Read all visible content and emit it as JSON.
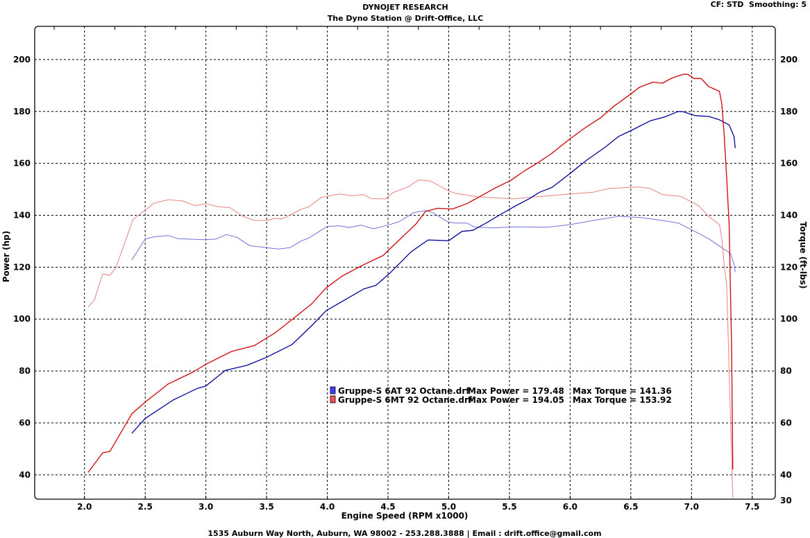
{
  "header": {
    "title": "DYNOJET RESEARCH",
    "subtitle": "The Dyno Station @ Drift-Office, LLC",
    "settings": "CF: STD  Smoothing: 5"
  },
  "footer": "1535 Auburn Way North, Auburn, WA 98002 - 253.288.3888 | Email : drift.office@gmail.com",
  "chart_data": {
    "type": "line",
    "title": "DYNOJET RESEARCH",
    "xlabel": "Engine Speed (RPM x1000)",
    "ylabel": "Power (hp)",
    "y2label": "Torque (ft-lbs)",
    "xlim": [
      1.59,
      7.69
    ],
    "ylim": [
      30.6,
      212.8
    ],
    "grid": true,
    "legend_position": "center",
    "xticks": [
      "2.0",
      "2.5",
      "3.0",
      "3.5",
      "4.0",
      "4.5",
      "5.0",
      "5.5",
      "6.0",
      "6.5",
      "7.0",
      "7.5"
    ],
    "xtick_values": [
      2.0,
      2.5,
      3.0,
      3.5,
      4.0,
      4.5,
      5.0,
      5.5,
      6.0,
      6.5,
      7.0,
      7.5
    ],
    "yticks": [
      "40",
      "60",
      "80",
      "100",
      "120",
      "140",
      "160",
      "180",
      "200"
    ],
    "ytick_values": [
      40,
      60,
      80,
      100,
      120,
      140,
      160,
      180,
      200
    ],
    "y2ticks": [
      "30",
      "40",
      "60",
      "80",
      "100",
      "120",
      "140",
      "160",
      "180",
      "200"
    ],
    "y2tick_values": [
      30,
      40,
      60,
      80,
      100,
      120,
      140,
      160,
      180,
      200
    ],
    "legend": [
      {
        "name": "Gruppe-S 6AT 92 Octane.drf",
        "power_label": "Max Power = 179.48",
        "torque_label": "Max Torque = 141.36",
        "color": "#0000c8"
      },
      {
        "name": "Gruppe-S 6MT 92 Octane.drf",
        "power_label": "Max Power = 194.05",
        "torque_label": "Max Torque = 153.92",
        "color": "#e00000"
      }
    ],
    "series": [
      {
        "name": "Gruppe-S 6AT 92 Octane.drf Power",
        "color": "#00009a",
        "width": 1.3,
        "points": [
          [
            2.39,
            56
          ],
          [
            2.5,
            61.7
          ],
          [
            2.73,
            68.8
          ],
          [
            2.93,
            73.3
          ],
          [
            3.0,
            74.2
          ],
          [
            3.16,
            80.2
          ],
          [
            3.34,
            82.2
          ],
          [
            3.5,
            85.3
          ],
          [
            3.71,
            90.2
          ],
          [
            3.87,
            97.4
          ],
          [
            3.99,
            103.2
          ],
          [
            4.12,
            106.7
          ],
          [
            4.3,
            111.6
          ],
          [
            4.4,
            113
          ],
          [
            4.52,
            117.9
          ],
          [
            4.69,
            125.9
          ],
          [
            4.83,
            130.5
          ],
          [
            5.0,
            130.2
          ],
          [
            5.11,
            133.8
          ],
          [
            5.2,
            134.2
          ],
          [
            5.32,
            137.3
          ],
          [
            5.43,
            140.4
          ],
          [
            5.55,
            143.6
          ],
          [
            5.66,
            146.3
          ],
          [
            5.75,
            148.9
          ],
          [
            5.85,
            150.7
          ],
          [
            6.0,
            156.1
          ],
          [
            6.13,
            161
          ],
          [
            6.29,
            166.3
          ],
          [
            6.4,
            170.4
          ],
          [
            6.5,
            172.6
          ],
          [
            6.66,
            176.4
          ],
          [
            6.78,
            177.9
          ],
          [
            6.89,
            180
          ],
          [
            6.93,
            179.9
          ],
          [
            7.03,
            178.4
          ],
          [
            7.14,
            178.1
          ],
          [
            7.23,
            176.8
          ],
          [
            7.31,
            174.8
          ],
          [
            7.35,
            170.4
          ],
          [
            7.36,
            165.9
          ]
        ]
      },
      {
        "name": "Gruppe-S 6MT 92 Octane.drf Power",
        "color": "#d00000",
        "width": 1.3,
        "points": [
          [
            2.03,
            40.9
          ],
          [
            2.15,
            48.5
          ],
          [
            2.21,
            49
          ],
          [
            2.39,
            63.5
          ],
          [
            2.5,
            68
          ],
          [
            2.69,
            75
          ],
          [
            2.89,
            79.5
          ],
          [
            3.0,
            82.6
          ],
          [
            3.21,
            87.5
          ],
          [
            3.4,
            89.8
          ],
          [
            3.57,
            94.7
          ],
          [
            3.72,
            100.2
          ],
          [
            3.87,
            105.8
          ],
          [
            3.99,
            112
          ],
          [
            4.12,
            116.5
          ],
          [
            4.28,
            120.5
          ],
          [
            4.46,
            124.5
          ],
          [
            4.59,
            130.4
          ],
          [
            4.73,
            136.6
          ],
          [
            4.81,
            141.5
          ],
          [
            4.91,
            142.7
          ],
          [
            5.03,
            142.4
          ],
          [
            5.15,
            144.5
          ],
          [
            5.26,
            147.3
          ],
          [
            5.39,
            150.7
          ],
          [
            5.51,
            153.4
          ],
          [
            5.62,
            157
          ],
          [
            5.74,
            160.4
          ],
          [
            5.85,
            163.9
          ],
          [
            6.0,
            169.5
          ],
          [
            6.13,
            173.9
          ],
          [
            6.25,
            177.5
          ],
          [
            6.36,
            182
          ],
          [
            6.49,
            186.4
          ],
          [
            6.57,
            189.3
          ],
          [
            6.68,
            191.3
          ],
          [
            6.76,
            190.9
          ],
          [
            6.84,
            192.9
          ],
          [
            6.93,
            194.3
          ],
          [
            6.97,
            194.3
          ],
          [
            7.02,
            192.7
          ],
          [
            7.08,
            192.7
          ],
          [
            7.14,
            189.6
          ],
          [
            7.23,
            187.8
          ],
          [
            7.25,
            182.9
          ],
          [
            7.27,
            170.4
          ],
          [
            7.29,
            154.3
          ],
          [
            7.31,
            136.4
          ],
          [
            7.33,
            90
          ],
          [
            7.34,
            42
          ]
        ]
      },
      {
        "name": "Gruppe-S 6AT 92 Octane.drf Torque",
        "color": "#7070e0",
        "width": 1,
        "points": [
          [
            2.39,
            122.8
          ],
          [
            2.5,
            130.8
          ],
          [
            2.57,
            131.7
          ],
          [
            2.69,
            132.2
          ],
          [
            2.77,
            131
          ],
          [
            2.99,
            130.6
          ],
          [
            3.08,
            130.8
          ],
          [
            3.17,
            132.6
          ],
          [
            3.26,
            131.4
          ],
          [
            3.36,
            128.3
          ],
          [
            3.5,
            127.5
          ],
          [
            3.6,
            127
          ],
          [
            3.69,
            127.5
          ],
          [
            3.79,
            130.2
          ],
          [
            3.85,
            131.3
          ],
          [
            4.0,
            135.7
          ],
          [
            4.1,
            135.9
          ],
          [
            4.18,
            135.3
          ],
          [
            4.28,
            136.2
          ],
          [
            4.38,
            134.8
          ],
          [
            4.5,
            136.2
          ],
          [
            4.59,
            137.5
          ],
          [
            4.71,
            141
          ],
          [
            4.81,
            141.8
          ],
          [
            4.87,
            141
          ],
          [
            4.99,
            137.5
          ],
          [
            5.05,
            137
          ],
          [
            5.15,
            137
          ],
          [
            5.21,
            135.5
          ],
          [
            5.36,
            135.1
          ],
          [
            5.53,
            135.5
          ],
          [
            5.81,
            135.4
          ],
          [
            6.0,
            136.4
          ],
          [
            6.19,
            138
          ],
          [
            6.4,
            139.6
          ],
          [
            6.59,
            139.1
          ],
          [
            6.76,
            138
          ],
          [
            6.89,
            137
          ],
          [
            7.01,
            134.2
          ],
          [
            7.14,
            131
          ],
          [
            7.25,
            127.5
          ],
          [
            7.32,
            125.3
          ],
          [
            7.35,
            121.3
          ],
          [
            7.36,
            118.1
          ]
        ]
      },
      {
        "name": "Gruppe-S 6MT 92 Octane.drf Torque",
        "color": "#e88080",
        "width": 1,
        "points": [
          [
            2.03,
            104.7
          ],
          [
            2.08,
            107.2
          ],
          [
            2.15,
            117.4
          ],
          [
            2.21,
            116.8
          ],
          [
            2.26,
            120
          ],
          [
            2.4,
            138.4
          ],
          [
            2.5,
            142
          ],
          [
            2.57,
            144.6
          ],
          [
            2.69,
            146
          ],
          [
            2.81,
            145.5
          ],
          [
            2.91,
            143.7
          ],
          [
            3.0,
            144.5
          ],
          [
            3.1,
            143.3
          ],
          [
            3.2,
            142.9
          ],
          [
            3.3,
            139.7
          ],
          [
            3.4,
            138
          ],
          [
            3.5,
            138
          ],
          [
            3.57,
            138.8
          ],
          [
            3.63,
            138.6
          ],
          [
            3.79,
            142.4
          ],
          [
            3.85,
            143.3
          ],
          [
            3.95,
            146.9
          ],
          [
            4.1,
            148.2
          ],
          [
            4.2,
            147.5
          ],
          [
            4.3,
            148
          ],
          [
            4.36,
            146.4
          ],
          [
            4.48,
            146.3
          ],
          [
            4.54,
            148.7
          ],
          [
            4.67,
            151
          ],
          [
            4.75,
            153.6
          ],
          [
            4.85,
            153.2
          ],
          [
            4.99,
            149.6
          ],
          [
            5.05,
            148.5
          ],
          [
            5.24,
            147.1
          ],
          [
            5.53,
            146.3
          ],
          [
            5.72,
            147.1
          ],
          [
            6.0,
            148.2
          ],
          [
            6.19,
            148.9
          ],
          [
            6.32,
            150.3
          ],
          [
            6.48,
            150.7
          ],
          [
            6.57,
            150.9
          ],
          [
            6.66,
            150.3
          ],
          [
            6.76,
            148
          ],
          [
            6.91,
            147.3
          ],
          [
            7.01,
            144.9
          ],
          [
            7.06,
            143.6
          ],
          [
            7.14,
            139.6
          ],
          [
            7.23,
            136.4
          ],
          [
            7.25,
            131
          ],
          [
            7.27,
            120.4
          ],
          [
            7.29,
            113.2
          ],
          [
            7.31,
            80
          ],
          [
            7.34,
            31
          ]
        ]
      }
    ]
  }
}
